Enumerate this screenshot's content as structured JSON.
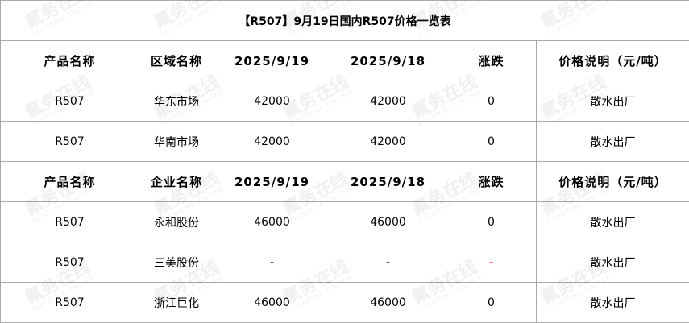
{
  "title": "【R507】9月19日国内R507价格一览表",
  "watermark": {
    "cn": "氟务在线",
    "en": "FLUORINE ONLINE"
  },
  "colors": {
    "grid": "#aaaaaa",
    "negative_dash": "#e00000"
  },
  "sections": [
    {
      "headers": [
        "产品名称",
        "区域名称",
        "2025/9/19",
        "2025/9/18",
        "涨跌",
        "价格说明（元/吨）"
      ],
      "rows": [
        [
          "R507",
          "华东市场",
          "42000",
          "42000",
          "0",
          "散水出厂"
        ],
        [
          "R507",
          "华南市场",
          "42000",
          "42000",
          "0",
          "散水出厂"
        ]
      ]
    },
    {
      "headers": [
        "产品名称",
        "企业名称",
        "2025/9/19",
        "2025/9/18",
        "涨跌",
        "价格说明（元/吨）"
      ],
      "rows": [
        [
          "R507",
          "永和股份",
          "46000",
          "46000",
          "0",
          "散水出厂"
        ],
        [
          "R507",
          "三美股份",
          "-",
          "-",
          "-",
          "散水出厂"
        ],
        [
          "R507",
          "浙江巨化",
          "46000",
          "46000",
          "0",
          "散水出厂"
        ]
      ]
    }
  ]
}
